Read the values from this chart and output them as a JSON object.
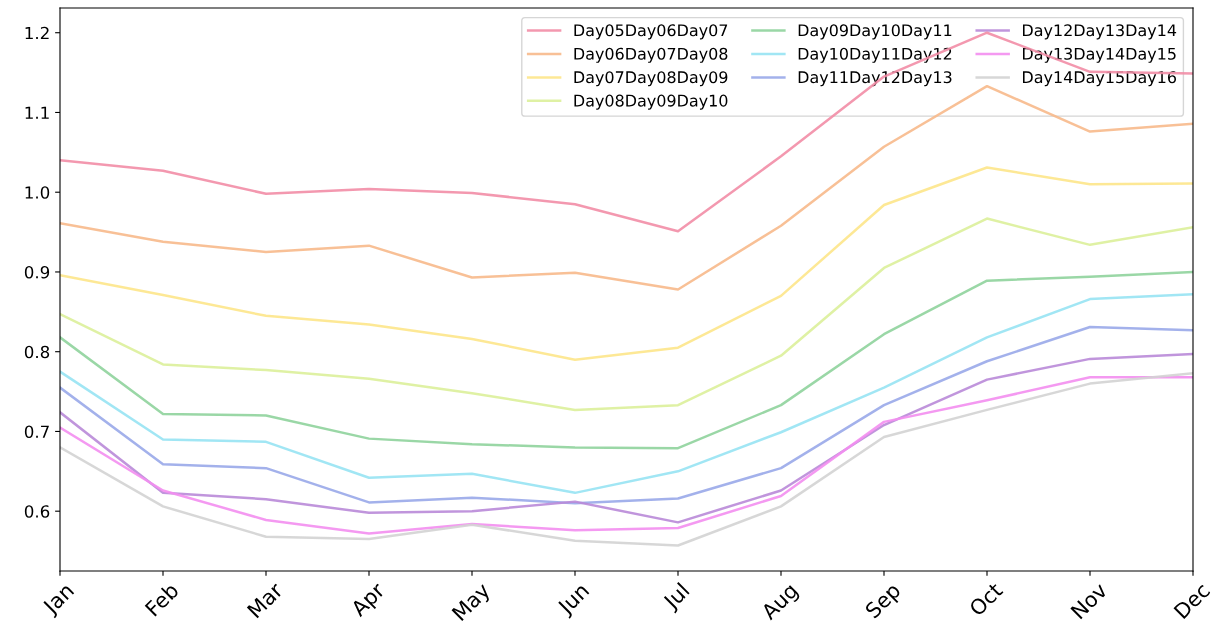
{
  "chart_data": {
    "type": "line",
    "categories": [
      "Jan",
      "Feb",
      "Mar",
      "Apr",
      "May",
      "Jun",
      "Jul",
      "Aug",
      "Sep",
      "Oct",
      "Nov",
      "Dec"
    ],
    "series": [
      {
        "name": "Day05Day06Day07",
        "color": "#f28da6",
        "values": [
          1.04,
          1.027,
          0.998,
          1.004,
          0.999,
          0.985,
          0.951,
          1.045,
          1.145,
          1.2,
          1.151,
          1.149
        ]
      },
      {
        "name": "Day06Day07Day08",
        "color": "#f7b98b",
        "values": [
          0.961,
          0.938,
          0.925,
          0.933,
          0.893,
          0.899,
          0.878,
          0.958,
          1.057,
          1.133,
          1.076,
          1.086
        ]
      },
      {
        "name": "Day07Day08Day09",
        "color": "#fde58a",
        "values": [
          0.896,
          0.871,
          0.845,
          0.834,
          0.816,
          0.79,
          0.805,
          0.87,
          0.984,
          1.031,
          1.01,
          1.011
        ]
      },
      {
        "name": "Day08Day09Day10",
        "color": "#dcef9a",
        "values": [
          0.847,
          0.784,
          0.777,
          0.766,
          0.748,
          0.727,
          0.733,
          0.795,
          0.905,
          0.967,
          0.934,
          0.956
        ]
      },
      {
        "name": "Day09Day10Day11",
        "color": "#8fd39c",
        "values": [
          0.818,
          0.722,
          0.72,
          0.691,
          0.684,
          0.68,
          0.679,
          0.733,
          0.822,
          0.889,
          0.894,
          0.9
        ]
      },
      {
        "name": "Day10Day11Day12",
        "color": "#97e3f3",
        "values": [
          0.775,
          0.69,
          0.687,
          0.642,
          0.647,
          0.623,
          0.65,
          0.699,
          0.755,
          0.818,
          0.866,
          0.872
        ]
      },
      {
        "name": "Day11Day12Day13",
        "color": "#99a8e9",
        "values": [
          0.755,
          0.659,
          0.654,
          0.611,
          0.617,
          0.61,
          0.616,
          0.654,
          0.733,
          0.788,
          0.831,
          0.827
        ]
      },
      {
        "name": "Day12Day13Day14",
        "color": "#b98ad8",
        "values": [
          0.724,
          0.623,
          0.615,
          0.598,
          0.6,
          0.612,
          0.586,
          0.626,
          0.708,
          0.765,
          0.791,
          0.797
        ]
      },
      {
        "name": "Day13Day14Day15",
        "color": "#f38ef0",
        "values": [
          0.705,
          0.626,
          0.589,
          0.572,
          0.584,
          0.576,
          0.579,
          0.619,
          0.712,
          0.739,
          0.768,
          0.768
        ]
      },
      {
        "name": "Day14Day15Day16",
        "color": "#d3d3d3",
        "values": [
          0.68,
          0.606,
          0.568,
          0.565,
          0.583,
          0.563,
          0.557,
          0.606,
          0.693,
          0.727,
          0.76,
          0.773
        ]
      }
    ],
    "ylim": [
      0.525,
      1.231
    ],
    "yticks": [
      {
        "value": 0.6,
        "label": "0.6"
      },
      {
        "value": 0.7,
        "label": "0.7"
      },
      {
        "value": 0.8,
        "label": "0.8"
      },
      {
        "value": 0.9,
        "label": "0.9"
      },
      {
        "value": 1.0,
        "label": "1.0"
      },
      {
        "value": 1.1,
        "label": "1.1"
      },
      {
        "value": 1.2,
        "label": "1.2"
      }
    ],
    "legend": "top right",
    "grid": false,
    "marker": "none",
    "line_style": "solid"
  }
}
